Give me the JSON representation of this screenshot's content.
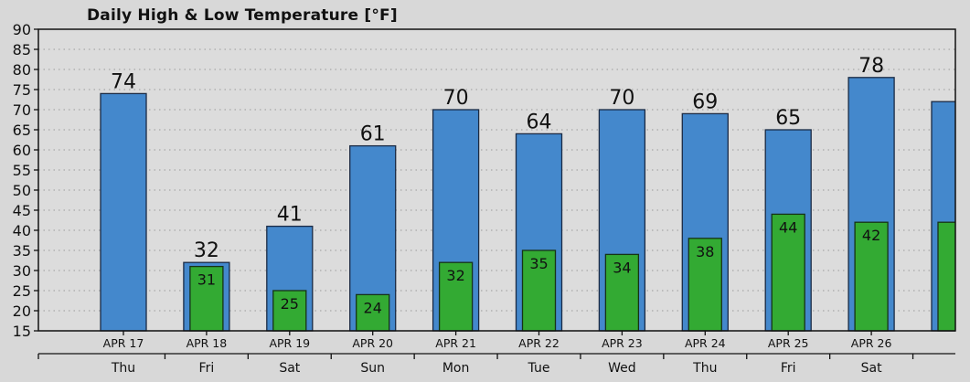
{
  "chart_data": {
    "type": "bar",
    "title": "Daily High & Low Temperature [°F]",
    "xlabel": "",
    "ylabel": "",
    "ylim": [
      15,
      90
    ],
    "yticks": [
      15,
      20,
      25,
      30,
      35,
      40,
      45,
      50,
      55,
      60,
      65,
      70,
      75,
      80,
      85,
      90
    ],
    "grid": true,
    "categories": [
      "APR 17",
      "APR 18",
      "APR 19",
      "APR 20",
      "APR 21",
      "APR 22",
      "APR 23",
      "APR 24",
      "APR 25",
      "APR 26",
      ""
    ],
    "day_labels": [
      "Thu",
      "Fri",
      "Sat",
      "Sun",
      "Mon",
      "Tue",
      "Wed",
      "Thu",
      "Fri",
      "Sat",
      ""
    ],
    "series": [
      {
        "color": "#4488cc",
        "values": [
          74,
          32,
          41,
          61,
          70,
          64,
          70,
          69,
          65,
          78,
          72
        ],
        "labels": [
          "74",
          "32",
          "41",
          "61",
          "70",
          "64",
          "70",
          "69",
          "65",
          "78",
          ""
        ]
      },
      {
        "color": "#33aa33",
        "values": [
          null,
          31,
          25,
          24,
          32,
          35,
          34,
          38,
          44,
          42,
          42
        ],
        "labels": [
          "",
          "31",
          "25",
          "24",
          "32",
          "35",
          "34",
          "38",
          "44",
          "42",
          ""
        ]
      }
    ]
  }
}
